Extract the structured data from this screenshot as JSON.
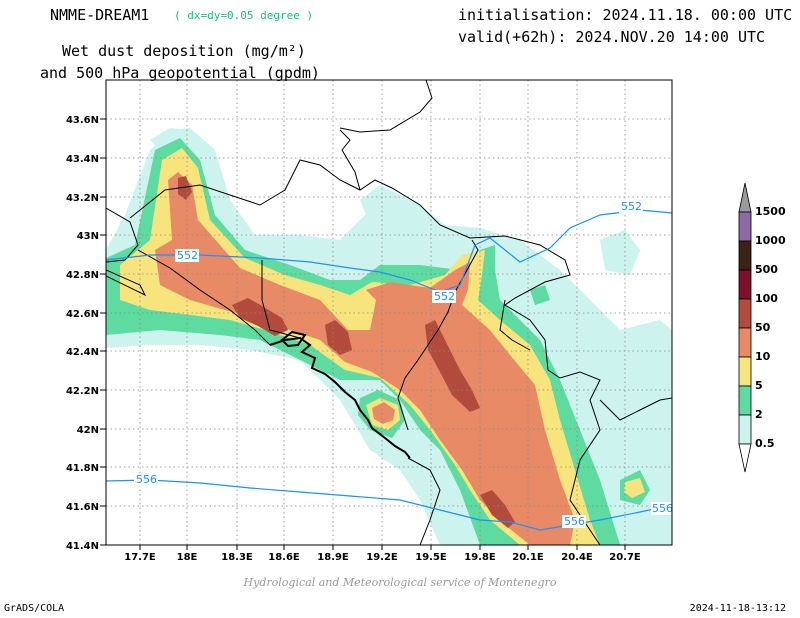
{
  "header": {
    "model": "NMME-DREAM1",
    "resolution": "( dx=dy=0.05 degree )",
    "init": "initialisation: 2024.11.18. 00:00 UTC",
    "valid": "valid(+62h): 2024.NOV.20 14:00 UTC",
    "title_line1": "Wet dust deposition (mg/m²)",
    "title_line2": "and 500 hPa geopotential (gpdm)"
  },
  "map": {
    "lat_labels": [
      "43.6N",
      "43.4N",
      "43.2N",
      "43N",
      "42.8N",
      "42.6N",
      "42.4N",
      "42.2N",
      "42N",
      "41.8N",
      "41.6N",
      "41.4N"
    ],
    "lon_labels": [
      "17.7E",
      "18E",
      "18.3E",
      "18.6E",
      "18.9E",
      "19.2E",
      "19.5E",
      "19.8E",
      "20.1E",
      "20.4E",
      "20.7E"
    ],
    "contour_labels": [
      "552",
      "552",
      "552",
      "556",
      "556",
      "556"
    ],
    "contour_color": "#1e90ff"
  },
  "colorbar": {
    "labels": [
      "0.5",
      "2",
      "5",
      "10",
      "50",
      "100",
      "500",
      "1000",
      "1500"
    ],
    "colors": [
      "#cdf3ee",
      "#5ddba0",
      "#f7e47c",
      "#e98a66",
      "#b24b3c",
      "#7e0f2d",
      "#3d2216",
      "#8d6aa6",
      "#9a9a9a"
    ]
  },
  "footer": {
    "credit": "Hydrological and Meteorological service of Montenegro",
    "software": "GrADS/COLA",
    "timestamp": "2024-11-18-13:12"
  }
}
